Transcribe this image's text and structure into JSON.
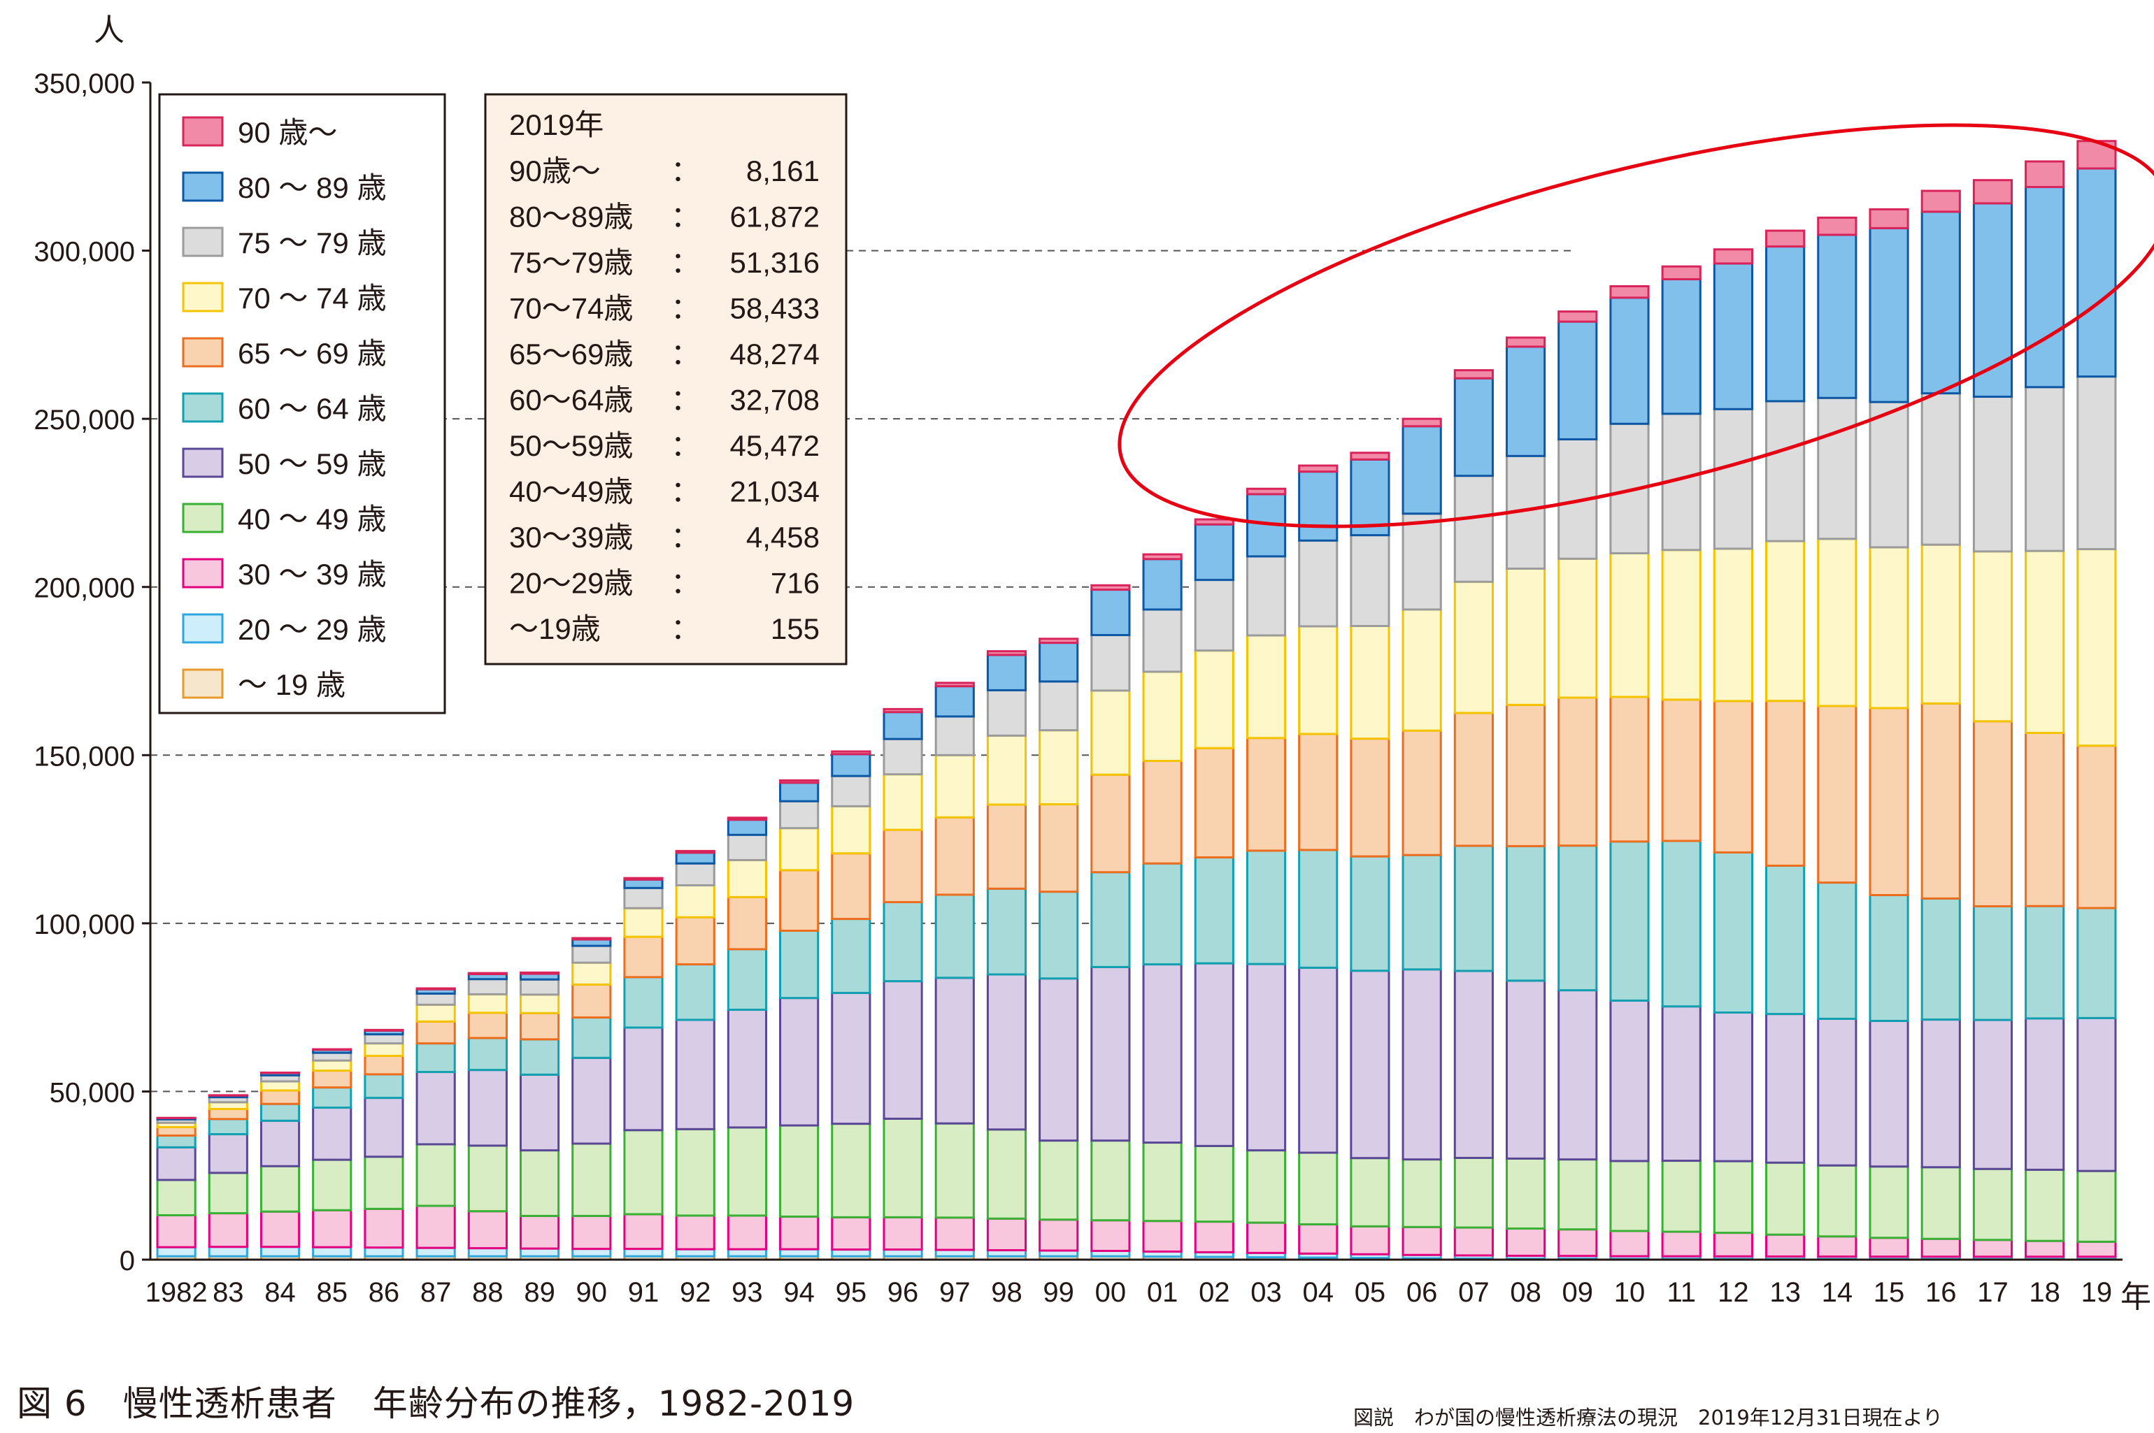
{
  "chart_data": {
    "type": "bar",
    "stacked": true,
    "title": "",
    "ylabel": "人",
    "xlabel": "年",
    "ylim": [
      0,
      350000
    ],
    "yticks": [
      0,
      50000,
      100000,
      150000,
      200000,
      250000,
      300000,
      350000
    ],
    "ytick_labels": [
      "0",
      "50,000",
      "100,000",
      "150,000",
      "200,000",
      "250,000",
      "300,000",
      "350,000"
    ],
    "grid": "dashed horizontal at 50,000 / 200,000 / 250,000 / 300,000 (partial)",
    "categories": [
      "1982",
      "83",
      "84",
      "85",
      "86",
      "87",
      "88",
      "89",
      "90",
      "91",
      "92",
      "93",
      "94",
      "95",
      "96",
      "97",
      "98",
      "99",
      "00",
      "01",
      "02",
      "03",
      "04",
      "05",
      "06",
      "07",
      "08",
      "09",
      "10",
      "11",
      "12",
      "13",
      "14",
      "15",
      "16",
      "17",
      "18",
      "19"
    ],
    "series": [
      {
        "name": "～ 19 歳",
        "color": "#f5e6cc",
        "edge": "#e89a2e",
        "values": [
          1000,
          1000,
          1000,
          1000,
          1000,
          1000,
          1000,
          1000,
          1000,
          1000,
          1000,
          1000,
          1000,
          1000,
          1000,
          1000,
          1000,
          1000,
          1000,
          900,
          800,
          700,
          600,
          500,
          400,
          300,
          250,
          250,
          200,
          200,
          200,
          180,
          170,
          160,
          160,
          155,
          155,
          155
        ]
      },
      {
        "name": "20 ～ 29 歳",
        "color": "#cdeefa",
        "edge": "#2ea7e0",
        "values": [
          2700,
          2800,
          2800,
          2700,
          2600,
          2500,
          2400,
          2300,
          2200,
          2200,
          2100,
          2100,
          2100,
          2000,
          2000,
          1900,
          1800,
          1700,
          1600,
          1500,
          1400,
          1300,
          1200,
          1100,
          1000,
          950,
          900,
          850,
          820,
          800,
          780,
          760,
          740,
          730,
          720,
          716,
          716,
          716
        ]
      },
      {
        "name": "30 ～ 39 歳",
        "color": "#f8c6dd",
        "edge": "#e4007f",
        "values": [
          9500,
          10000,
          10500,
          11000,
          11500,
          12500,
          11000,
          9700,
          9800,
          10300,
          10000,
          10000,
          9700,
          9600,
          9600,
          9600,
          9400,
          9200,
          9100,
          9100,
          9100,
          9000,
          8700,
          8300,
          8300,
          8300,
          8100,
          7900,
          7500,
          7300,
          7000,
          6500,
          6000,
          5600,
          5300,
          5000,
          4700,
          4458
        ]
      },
      {
        "name": "40 ～ 49 歳",
        "color": "#d8edc4",
        "edge": "#3ab035",
        "values": [
          10500,
          12000,
          13500,
          15000,
          15500,
          18300,
          19500,
          19500,
          21500,
          25000,
          25700,
          26200,
          27100,
          27800,
          29300,
          28000,
          26500,
          23500,
          23700,
          23300,
          22500,
          21500,
          21300,
          20300,
          20100,
          20700,
          20800,
          20800,
          20800,
          21100,
          21300,
          21400,
          21100,
          21200,
          21300,
          21100,
          21150,
          21034
        ]
      },
      {
        "name": "50 ～ 59 歳",
        "color": "#d8cce6",
        "edge": "#5a4897",
        "values": [
          9700,
          11500,
          13500,
          15500,
          17500,
          21500,
          22500,
          22500,
          25500,
          30500,
          32500,
          35000,
          37900,
          38900,
          40900,
          43300,
          46100,
          48200,
          51600,
          53000,
          54300,
          55400,
          55000,
          55700,
          56500,
          55600,
          52900,
          50300,
          47700,
          45900,
          44200,
          44200,
          43600,
          43300,
          43900,
          44300,
          45000,
          45472
        ]
      },
      {
        "name": "60 ～ 64 歳",
        "color": "#a9dada",
        "edge": "#12a0b0",
        "values": [
          3500,
          4500,
          5000,
          6000,
          7000,
          8500,
          9500,
          10500,
          12000,
          15000,
          16500,
          18000,
          20000,
          22000,
          23500,
          24700,
          25500,
          25800,
          28200,
          30000,
          31500,
          33700,
          35000,
          34000,
          34000,
          37200,
          40000,
          43000,
          47300,
          49200,
          47600,
          44100,
          40500,
          37400,
          36000,
          33800,
          33400,
          32708
        ]
      },
      {
        "name": "65 ～ 69 歳",
        "color": "#f9d3b0",
        "edge": "#ed6d1f",
        "values": [
          2500,
          3000,
          4000,
          5000,
          5500,
          6500,
          7500,
          7800,
          9800,
          12000,
          14000,
          15500,
          18000,
          19500,
          21500,
          23000,
          25000,
          26000,
          29000,
          30500,
          32500,
          33500,
          34500,
          35000,
          37000,
          39500,
          42000,
          44000,
          43000,
          42000,
          45000,
          49000,
          52500,
          55600,
          58000,
          55000,
          51500,
          48274
        ]
      },
      {
        "name": "70 ～ 74 歳",
        "color": "#fdf7c9",
        "edge": "#f5c400",
        "values": [
          1300,
          2000,
          2700,
          3000,
          3700,
          5000,
          5500,
          5500,
          6500,
          8500,
          9500,
          11000,
          12500,
          14000,
          16500,
          18500,
          20500,
          22000,
          25000,
          26500,
          29000,
          30500,
          32000,
          33500,
          36000,
          39000,
          40500,
          41300,
          42700,
          44500,
          45300,
          47500,
          49700,
          47800,
          47200,
          50500,
          54100,
          58433
        ]
      },
      {
        "name": "75 ～ 79 歳",
        "color": "#dcdcdc",
        "edge": "#9b9b9b",
        "values": [
          1000,
          1500,
          1800,
          2300,
          2700,
          3300,
          4500,
          4500,
          5000,
          6000,
          6500,
          7500,
          8000,
          9000,
          10500,
          11500,
          13500,
          14500,
          16500,
          18500,
          21000,
          23500,
          25500,
          27000,
          28500,
          31500,
          33500,
          35500,
          38500,
          40500,
          41500,
          41600,
          41900,
          43200,
          45000,
          46000,
          48700,
          51316
        ]
      },
      {
        "name": "80 ～ 89 歳",
        "color": "#81c0eb",
        "edge": "#0d57a4",
        "values": [
          400,
          500,
          700,
          900,
          1100,
          1300,
          1500,
          1700,
          1900,
          2500,
          3200,
          4500,
          5500,
          6500,
          8000,
          9000,
          10500,
          11500,
          13500,
          15000,
          16500,
          18500,
          20500,
          22500,
          26000,
          29000,
          32500,
          35000,
          37500,
          40000,
          43300,
          46000,
          48500,
          51700,
          54000,
          57500,
          59500,
          61872
        ]
      },
      {
        "name": "90 歳～",
        "color": "#f08aa6",
        "edge": "#d8245a",
        "values": [
          50,
          80,
          100,
          150,
          200,
          250,
          300,
          350,
          400,
          450,
          500,
          600,
          700,
          800,
          900,
          1000,
          1100,
          1200,
          1300,
          1400,
          1500,
          1600,
          1800,
          2000,
          2200,
          2400,
          2700,
          3000,
          3400,
          3800,
          4200,
          4700,
          5100,
          5600,
          6200,
          6900,
          7600,
          8161
        ]
      }
    ],
    "legend_position": "top-left",
    "annotation": {
      "title": "2019年",
      "rows": [
        {
          "label": "90歳～",
          "value": "8,161"
        },
        {
          "label": "80～89歳",
          "value": "61,872"
        },
        {
          "label": "75～79歳",
          "value": "51,316"
        },
        {
          "label": "70～74歳",
          "value": "58,433"
        },
        {
          "label": "65～69歳",
          "value": "48,274"
        },
        {
          "label": "60～64歳",
          "value": "32,708"
        },
        {
          "label": "50～59歳",
          "value": "45,472"
        },
        {
          "label": "40～49歳",
          "value": "21,034"
        },
        {
          "label": "30～39歳",
          "value": "4,458"
        },
        {
          "label": "20～29歳",
          "value": "716"
        },
        {
          "label": "～19歳",
          "value": "155"
        }
      ],
      "box_color": "#fdf0e4",
      "highlight_ellipse_color": "#e60012"
    }
  },
  "caption": "図 6　慢性透析患者　年齢分布の推移，1982-2019",
  "source": "図説　わが国の慢性透析療法の現況　2019年12月31日現在より"
}
